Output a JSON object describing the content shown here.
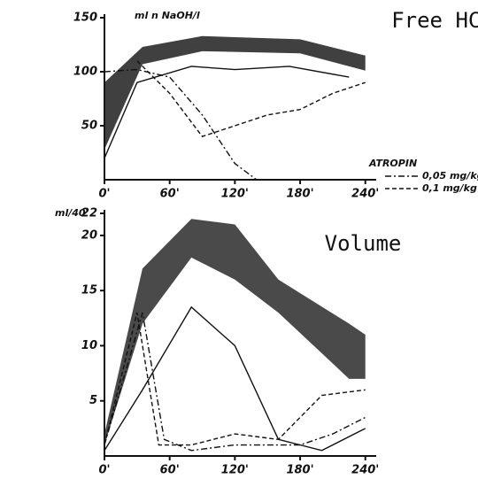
{
  "chart_data": [
    {
      "type": "line",
      "title": "Free HCL",
      "ylabel": "ml n NaOH/l",
      "xlim": [
        0,
        250
      ],
      "ylim": [
        0,
        150
      ],
      "yticks": [
        50,
        100,
        150
      ],
      "xticks": [
        {
          "value": 0,
          "label": "0'"
        },
        {
          "value": 60,
          "label": "60'"
        },
        {
          "value": 120,
          "label": "120'"
        },
        {
          "value": 180,
          "label": "180'"
        },
        {
          "value": 240,
          "label": "240'"
        }
      ],
      "band": {
        "color": "#1e1e1e",
        "x": [
          0,
          35,
          90,
          180,
          240
        ],
        "low": [
          28,
          107,
          119,
          117,
          101
        ],
        "high": [
          90,
          123,
          133,
          130,
          115
        ]
      },
      "legend_title": "ATROPIN",
      "series": [
        {
          "color": "#111111",
          "style": "solid",
          "x": [
            0,
            30,
            80,
            120,
            170,
            225
          ],
          "values": [
            20,
            90,
            105,
            102,
            105,
            95
          ]
        },
        {
          "name": "0,05 mg/kg",
          "color": "#111111",
          "style": "dashdot",
          "x": [
            0,
            30,
            60,
            90,
            120,
            140
          ],
          "values": [
            100,
            102,
            95,
            60,
            15,
            0
          ]
        },
        {
          "name": "0,1 mg/kg",
          "color": "#111111",
          "style": "dashed",
          "x": [
            30,
            60,
            90,
            120,
            150,
            180,
            210,
            240
          ],
          "values": [
            110,
            80,
            40,
            50,
            60,
            65,
            80,
            90
          ]
        }
      ]
    },
    {
      "type": "line",
      "title": "Volume",
      "ylabel": "ml/40'",
      "xlim": [
        0,
        250
      ],
      "ylim": [
        0,
        22
      ],
      "yticks": [
        5,
        10,
        15,
        20,
        22
      ],
      "xticks": [
        {
          "value": 0,
          "label": "0'"
        },
        {
          "value": 60,
          "label": "60'"
        },
        {
          "value": 120,
          "label": "120'"
        },
        {
          "value": 180,
          "label": "180'"
        },
        {
          "value": 240,
          "label": "240'"
        }
      ],
      "band": {
        "color": "#2a2a2a",
        "x": [
          0,
          35,
          80,
          120,
          160,
          225,
          240
        ],
        "low": [
          1,
          12,
          18,
          16,
          13,
          7,
          7
        ],
        "high": [
          2,
          17,
          21.5,
          21,
          16,
          12,
          11
        ]
      },
      "series": [
        {
          "color": "#111111",
          "style": "solid",
          "x": [
            0,
            35,
            80,
            120,
            160,
            200,
            240
          ],
          "values": [
            0.5,
            6,
            13.5,
            10,
            1.5,
            0.5,
            2.5
          ]
        },
        {
          "color": "#111111",
          "style": "dashdot",
          "x": [
            0,
            35,
            55,
            80,
            120,
            180,
            210,
            240
          ],
          "values": [
            1,
            13,
            1.5,
            0.5,
            1,
            1,
            2,
            3.5
          ]
        },
        {
          "color": "#111111",
          "style": "dashed",
          "x": [
            0,
            30,
            50,
            80,
            120,
            160,
            200,
            240
          ],
          "values": [
            1,
            13,
            1,
            1,
            2,
            1.5,
            5.5,
            6
          ]
        }
      ]
    }
  ]
}
